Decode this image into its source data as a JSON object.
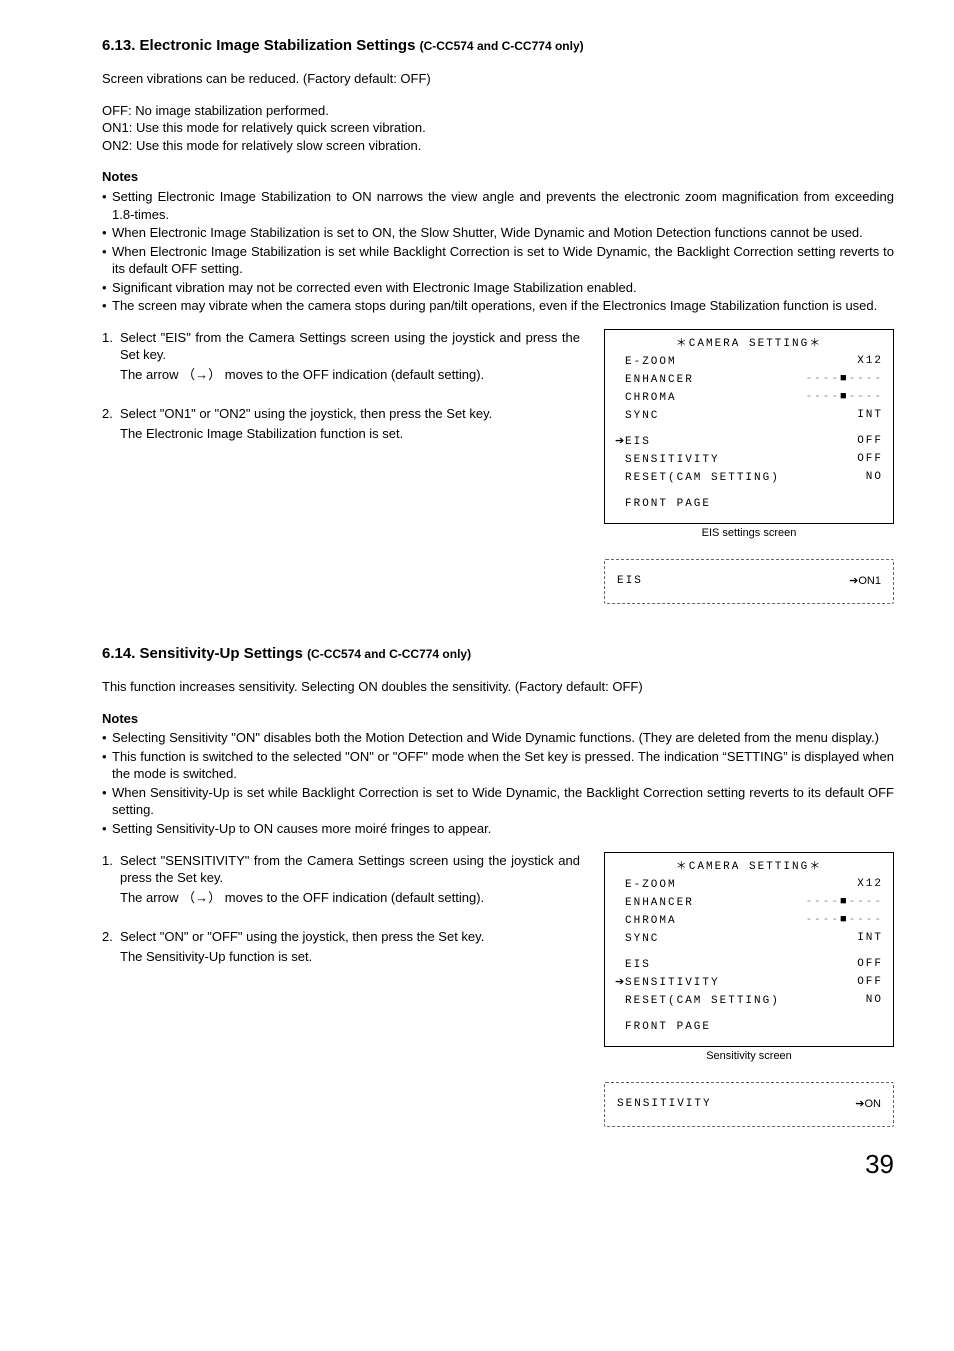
{
  "section1": {
    "heading_main": "6.13. Electronic Image Stabilization Settings",
    "heading_sub": "(C-CC574 and C-CC774 only)",
    "intro": "Screen vibrations can be reduced. (Factory default: OFF)",
    "modes": [
      "OFF: No image stabilization performed.",
      "ON1: Use this mode for relatively quick screen vibration.",
      "ON2: Use this mode for relatively slow screen vibration."
    ],
    "notes_label": "Notes",
    "notes": [
      "Setting Electronic Image Stabilization to ON narrows the view angle and prevents the electronic zoom magnification from exceeding 1.8-times.",
      "When Electronic Image Stabilization is set to ON, the Slow Shutter, Wide Dynamic and Motion Detection functions cannot be used.",
      "When Electronic Image Stabilization is set while Backlight Correction is set to Wide Dynamic, the Backlight Correction setting reverts to its default OFF setting.",
      "Significant vibration may not be corrected even with Electronic Image Stabilization enabled.",
      "The screen may vibrate when the camera stops during pan/tilt operations, even if the Electronics Image Stabilization function is used."
    ],
    "steps": [
      {
        "main": "Select \"EIS\" from the Camera Settings screen using the joystick and press the Set key.",
        "sub": "The arrow （→） moves to the OFF indication (default setting)."
      },
      {
        "main": "Select \"ON1\" or \"ON2\" using the joystick, then press the Set key.",
        "sub": "The Electronic Image Stabilization function is set."
      }
    ],
    "osd": {
      "title": "＊CAMERA SETTING＊",
      "arrow_index": 4,
      "rows": [
        {
          "label": "E-ZOOM",
          "value": "X12"
        },
        {
          "label": "ENHANCER",
          "value": "",
          "slider": true
        },
        {
          "label": "CHROMA",
          "value": "",
          "slider": true
        },
        {
          "label": "SYNC",
          "value": "INT"
        },
        {
          "label": "EIS",
          "value": "OFF",
          "gap_before": true
        },
        {
          "label": "SENSITIVITY",
          "value": "OFF"
        },
        {
          "label": "RESET(CAM SETTING)",
          "value": "NO"
        },
        {
          "label": "FRONT PAGE",
          "value": "",
          "gap_before": true
        }
      ],
      "caption": "EIS settings screen",
      "dashbox": {
        "label": "EIS",
        "value": "➔ON1"
      }
    }
  },
  "section2": {
    "heading_main": "6.14. Sensitivity-Up Settings",
    "heading_sub": "(C-CC574 and C-CC774 only)",
    "intro": "This function increases sensitivity. Selecting ON doubles the sensitivity. (Factory default: OFF)",
    "notes_label": "Notes",
    "notes": [
      "Selecting Sensitivity \"ON\" disables both the Motion Detection and Wide Dynamic functions. (They are deleted from the menu display.)",
      "This function is switched to the selected \"ON\" or \"OFF\" mode when the Set key is pressed. The indication “SETTING” is displayed when the mode is switched.",
      "When Sensitivity-Up is set while Backlight Correction is set to Wide Dynamic, the Backlight Correction setting reverts to its default OFF setting.",
      "Setting Sensitivity-Up to ON causes more moiré fringes to appear."
    ],
    "steps": [
      {
        "main": "Select \"SENSITIVITY\" from the Camera Settings screen using the joystick and press the Set key.",
        "sub": "The arrow （→） moves to the OFF indication (default setting)."
      },
      {
        "main": "Select \"ON\" or \"OFF\" using the joystick, then press the Set key.",
        "sub": "The Sensitivity-Up function is set."
      }
    ],
    "osd": {
      "title": "＊CAMERA SETTING＊",
      "arrow_index": 5,
      "rows": [
        {
          "label": "E-ZOOM",
          "value": "X12"
        },
        {
          "label": "ENHANCER",
          "value": "",
          "slider": true
        },
        {
          "label": "CHROMA",
          "value": "",
          "slider": true
        },
        {
          "label": "SYNC",
          "value": "INT"
        },
        {
          "label": "EIS",
          "value": "OFF",
          "gap_before": true
        },
        {
          "label": "SENSITIVITY",
          "value": "OFF"
        },
        {
          "label": "RESET(CAM SETTING)",
          "value": "NO"
        },
        {
          "label": "FRONT PAGE",
          "value": "",
          "gap_before": true
        }
      ],
      "caption": "Sensitivity  screen",
      "dashbox": {
        "label": "SENSITIVITY",
        "value": "➔ON"
      }
    }
  },
  "page_number": "39"
}
